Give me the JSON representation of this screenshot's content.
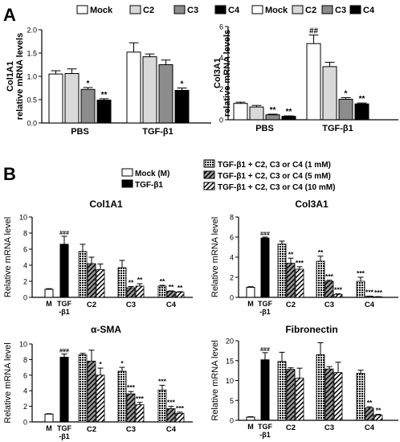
{
  "panel_a_letter": "A",
  "panel_b_letter": "B",
  "legend_a": [
    "Mock",
    "C2",
    "C3",
    "C4"
  ],
  "legend_b_left": [
    "Mock (M)",
    "TGF-β1"
  ],
  "legend_b_right": [
    "TGF-β1 + C2, C3 or C4 (1 mM)",
    "TGF-β1 + C2, C3 or C4 (5 mM)",
    "TGF-β1 + C2, C3 or C4 (10 mM)"
  ],
  "chart_data": [
    {
      "type": "bar",
      "panel": "A",
      "ylabel": "Col1A1 relative mRNA levels",
      "ylim": [
        0,
        2.0
      ],
      "yticks": [
        "0.0",
        "0.5",
        "1.0",
        "1.5",
        "2.0"
      ],
      "groups": [
        "PBS",
        "TGF-β1"
      ],
      "series": [
        {
          "name": "Mock",
          "values": [
            1.05,
            1.52
          ],
          "errors": [
            0.07,
            0.2
          ],
          "labels": [
            "",
            ""
          ]
        },
        {
          "name": "C2",
          "values": [
            1.06,
            1.42
          ],
          "errors": [
            0.1,
            0.06
          ],
          "labels": [
            "",
            ""
          ]
        },
        {
          "name": "C3",
          "values": [
            0.72,
            1.25
          ],
          "errors": [
            0.04,
            0.1
          ],
          "labels": [
            "*",
            ""
          ]
        },
        {
          "name": "C4",
          "values": [
            0.49,
            0.7
          ],
          "errors": [
            0.03,
            0.05
          ],
          "labels": [
            "**",
            "*"
          ]
        }
      ]
    },
    {
      "type": "bar",
      "panel": "A",
      "ylabel": "Col3A1 relative mRNA levels",
      "ylim": [
        0,
        6
      ],
      "yticks": [
        "0",
        "2",
        "4",
        "6"
      ],
      "groups": [
        "PBS",
        "TGF-β1"
      ],
      "series": [
        {
          "name": "Mock",
          "values": [
            1.05,
            4.9
          ],
          "errors": [
            0.08,
            0.55
          ],
          "labels": [
            "",
            "##"
          ]
        },
        {
          "name": "C2",
          "values": [
            0.82,
            3.42
          ],
          "errors": [
            0.1,
            0.28
          ],
          "labels": [
            "",
            ""
          ]
        },
        {
          "name": "C3",
          "values": [
            0.32,
            1.32
          ],
          "errors": [
            0.04,
            0.1
          ],
          "labels": [
            "**",
            "*"
          ]
        },
        {
          "name": "C4",
          "values": [
            0.22,
            1.02
          ],
          "errors": [
            0.03,
            0.06
          ],
          "labels": [
            "**",
            "**"
          ]
        }
      ]
    },
    {
      "type": "bar",
      "panel": "B",
      "title": "Col1A1",
      "ylabel": "Relative mRNA level",
      "ylim": [
        0,
        10
      ],
      "yticks": [
        "0",
        "2",
        "4",
        "6",
        "8",
        "10"
      ],
      "controls": [
        {
          "label": "M",
          "value": 1.0,
          "error": 0.08,
          "mark": ""
        },
        {
          "label": "TGF -β1",
          "value": 6.6,
          "error": 1.0,
          "mark": "###"
        }
      ],
      "groups": [
        "C2",
        "C3",
        "C4"
      ],
      "series": [
        {
          "name": "1 mM",
          "values": [
            5.7,
            3.7,
            1.4
          ],
          "errors": [
            0.9,
            0.9,
            0.1
          ],
          "labels": [
            "",
            "",
            "**"
          ]
        },
        {
          "name": "5 mM",
          "values": [
            4.2,
            1.2,
            0.75
          ],
          "errors": [
            0.8,
            0.15,
            0.05
          ],
          "labels": [
            "",
            "**",
            "**"
          ]
        },
        {
          "name": "10 mM",
          "values": [
            3.45,
            1.4,
            0.65
          ],
          "errors": [
            0.7,
            0.3,
            0.05
          ],
          "labels": [
            "",
            "**",
            "**"
          ]
        }
      ]
    },
    {
      "type": "bar",
      "panel": "B",
      "title": "Col3A1",
      "ylabel": "Relative mRNA level",
      "ylim": [
        0,
        8
      ],
      "yticks": [
        "0",
        "2",
        "4",
        "6",
        "8"
      ],
      "controls": [
        {
          "label": "M",
          "value": 1.0,
          "error": 0.06,
          "mark": ""
        },
        {
          "label": "TGF -β1",
          "value": 5.9,
          "error": 0.1,
          "mark": "###"
        }
      ],
      "groups": [
        "C2",
        "C3",
        "C4"
      ],
      "series": [
        {
          "name": "1 mM",
          "values": [
            5.3,
            3.6,
            1.6
          ],
          "errors": [
            0.3,
            0.5,
            0.4
          ],
          "labels": [
            "",
            "**",
            "***"
          ]
        },
        {
          "name": "5 mM",
          "values": [
            3.4,
            1.6,
            0.1
          ],
          "errors": [
            0.5,
            0.1,
            0.02
          ],
          "labels": [
            "**",
            "***",
            "***"
          ]
        },
        {
          "name": "10 mM",
          "values": [
            2.8,
            0.3,
            0.05
          ],
          "errors": [
            0.25,
            0.05,
            0.02
          ],
          "labels": [
            "***",
            "***",
            "***"
          ]
        }
      ]
    },
    {
      "type": "bar",
      "panel": "B",
      "title": "α-SMA",
      "ylabel": "Relative mRNA level",
      "ylim": [
        0,
        10
      ],
      "yticks": [
        "0",
        "2",
        "4",
        "6",
        "8",
        "10"
      ],
      "controls": [
        {
          "label": "M",
          "value": 1.0,
          "error": 0.05,
          "mark": ""
        },
        {
          "label": "TGF -β1",
          "value": 8.3,
          "error": 0.4,
          "mark": "###"
        }
      ],
      "groups": [
        "C2",
        "C3",
        "C4"
      ],
      "series": [
        {
          "name": "1 mM",
          "values": [
            8.6,
            6.5,
            4.1
          ],
          "errors": [
            0.2,
            0.5,
            0.6
          ],
          "labels": [
            "",
            "*",
            "***"
          ]
        },
        {
          "name": "5 mM",
          "values": [
            7.8,
            3.6,
            1.7
          ],
          "errors": [
            1.4,
            0.3,
            0.3
          ],
          "labels": [
            "",
            "***",
            "***"
          ]
        },
        {
          "name": "10 mM",
          "values": [
            6.0,
            2.2,
            1.1
          ],
          "errors": [
            0.9,
            0.3,
            0.15
          ],
          "labels": [
            "*",
            "***",
            "***"
          ]
        }
      ]
    },
    {
      "type": "bar",
      "panel": "B",
      "title": "Fibronectin",
      "ylabel": "Relative mRNA level",
      "ylim": [
        0,
        20
      ],
      "yticks": [
        "0",
        "5",
        "10",
        "15",
        "20"
      ],
      "controls": [
        {
          "label": "M",
          "value": 0.8,
          "error": 0.1,
          "mark": ""
        },
        {
          "label": "TGF -β1",
          "value": 15.2,
          "error": 1.8,
          "mark": "###"
        }
      ],
      "groups": [
        "C2",
        "C3",
        "C4"
      ],
      "series": [
        {
          "name": "1 mM",
          "values": [
            14.8,
            16.5,
            11.8
          ],
          "errors": [
            2.3,
            3.0,
            0.8
          ],
          "labels": [
            "",
            "",
            ""
          ]
        },
        {
          "name": "5 mM",
          "values": [
            12.8,
            12.9,
            3.1
          ],
          "errors": [
            0.4,
            0.6,
            0.3
          ],
          "labels": [
            "",
            "",
            "**"
          ]
        },
        {
          "name": "10 mM",
          "values": [
            10.6,
            12.0,
            1.3
          ],
          "errors": [
            2.5,
            2.6,
            0.2
          ],
          "labels": [
            "",
            "",
            "**"
          ]
        }
      ]
    }
  ]
}
